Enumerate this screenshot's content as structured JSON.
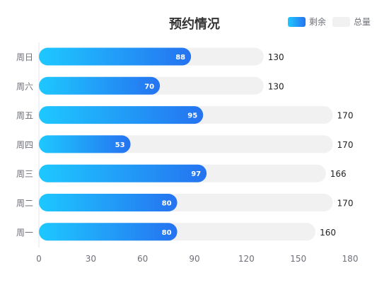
{
  "chart_data": {
    "type": "bar",
    "orientation": "horizontal",
    "title": "预约情况",
    "categories": [
      "周日",
      "周六",
      "周五",
      "周四",
      "周三",
      "周二",
      "周一"
    ],
    "series": [
      {
        "name": "剩余",
        "values": [
          88,
          70,
          95,
          53,
          97,
          80,
          80
        ]
      },
      {
        "name": "总量",
        "values": [
          130,
          130,
          170,
          170,
          166,
          170,
          160
        ]
      }
    ],
    "xlim": [
      0,
      180
    ],
    "xticks": [
      0,
      30,
      60,
      90,
      120,
      150,
      180
    ],
    "legend_position": "top-right",
    "grid": false,
    "colors": {
      "remaining_gradient_start": "#1ec8ff",
      "remaining_gradient_end": "#2573f0",
      "total": "#f1f1f1",
      "remaining_label": "#ffffff",
      "total_label": "#222222",
      "axis_label": "#6e7079",
      "title": "#333333"
    }
  }
}
